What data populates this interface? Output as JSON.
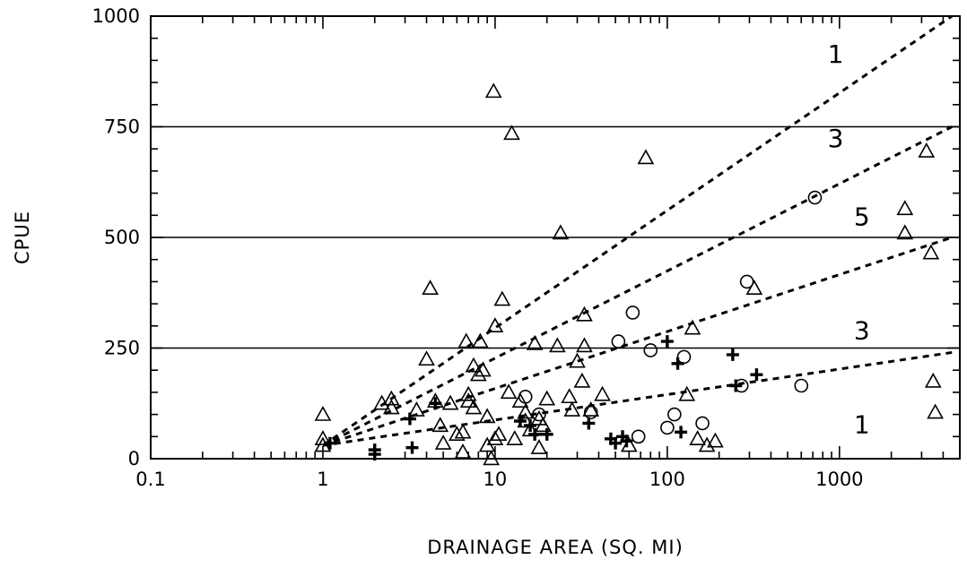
{
  "chart_data": {
    "type": "scatter",
    "title": "",
    "xlabel": "DRAINAGE AREA (SQ. MI)",
    "ylabel": "CPUE",
    "xscale": "log",
    "xlim": [
      0.1,
      5000
    ],
    "ylim": [
      0,
      1000
    ],
    "x_ticks": [
      0.1,
      1,
      10,
      100,
      1000
    ],
    "x_tick_labels": [
      "0.1",
      "1",
      "10",
      "100",
      "1000"
    ],
    "y_ticks": [
      0,
      250,
      500,
      750,
      1000
    ],
    "y_tick_labels": [
      "0",
      "250",
      "500",
      "750",
      "1000"
    ],
    "grid": false,
    "hlines": [
      250,
      500,
      750
    ],
    "ref_lines": [
      {
        "x": [
          1,
          4500
        ],
        "y": [
          30,
          1000
        ]
      },
      {
        "x": [
          1,
          4500
        ],
        "y": [
          30,
          750
        ]
      },
      {
        "x": [
          1,
          4500
        ],
        "y": [
          30,
          500
        ]
      },
      {
        "x": [
          1,
          4500
        ],
        "y": [
          30,
          240
        ]
      }
    ],
    "region_labels": [
      {
        "text": "1",
        "x": 950,
        "y": 915
      },
      {
        "text": "3",
        "x": 950,
        "y": 725
      },
      {
        "text": "5",
        "x": 1350,
        "y": 548
      },
      {
        "text": "3",
        "x": 1350,
        "y": 290
      },
      {
        "text": "1",
        "x": 1350,
        "y": 78
      }
    ],
    "series": [
      {
        "marker": "triangle",
        "points": [
          [
            1,
            100
          ],
          [
            1,
            45
          ],
          [
            1,
            30
          ],
          [
            2.2,
            125
          ],
          [
            2.5,
            135
          ],
          [
            2.5,
            115
          ],
          [
            3.5,
            110
          ],
          [
            4,
            225
          ],
          [
            4.2,
            385
          ],
          [
            4.5,
            130
          ],
          [
            4.8,
            75
          ],
          [
            5,
            35
          ],
          [
            5.5,
            125
          ],
          [
            6,
            55
          ],
          [
            6.5,
            60
          ],
          [
            6.5,
            15
          ],
          [
            6.8,
            265
          ],
          [
            7,
            145
          ],
          [
            7,
            130
          ],
          [
            7.5,
            115
          ],
          [
            7.5,
            210
          ],
          [
            8,
            190
          ],
          [
            8.2,
            265
          ],
          [
            8.5,
            200
          ],
          [
            9,
            30
          ],
          [
            9,
            95
          ],
          [
            9.5,
            0
          ],
          [
            9.8,
            830
          ],
          [
            10,
            45
          ],
          [
            10,
            300
          ],
          [
            10.5,
            55
          ],
          [
            11,
            360
          ],
          [
            12,
            150
          ],
          [
            12.5,
            735
          ],
          [
            13,
            45
          ],
          [
            14,
            130
          ],
          [
            15,
            105
          ],
          [
            15,
            85
          ],
          [
            16,
            65
          ],
          [
            17,
            260
          ],
          [
            18,
            90
          ],
          [
            18,
            25
          ],
          [
            19,
            75
          ],
          [
            20,
            135
          ],
          [
            23,
            255
          ],
          [
            24,
            510
          ],
          [
            27,
            140
          ],
          [
            28,
            110
          ],
          [
            30,
            220
          ],
          [
            32,
            175
          ],
          [
            33,
            325
          ],
          [
            33,
            255
          ],
          [
            36,
            110
          ],
          [
            42,
            145
          ],
          [
            60,
            30
          ],
          [
            75,
            680
          ],
          [
            130,
            145
          ],
          [
            140,
            295
          ],
          [
            150,
            45
          ],
          [
            170,
            30
          ],
          [
            190,
            40
          ],
          [
            320,
            385
          ],
          [
            2400,
            565
          ],
          [
            2400,
            510
          ],
          [
            3200,
            695
          ],
          [
            3400,
            465
          ],
          [
            3500,
            175
          ],
          [
            3600,
            105
          ]
        ]
      },
      {
        "marker": "circle",
        "points": [
          [
            15,
            140
          ],
          [
            18,
            100
          ],
          [
            36,
            105
          ],
          [
            52,
            265
          ],
          [
            63,
            330
          ],
          [
            68,
            50
          ],
          [
            80,
            245
          ],
          [
            100,
            70
          ],
          [
            110,
            100
          ],
          [
            125,
            230
          ],
          [
            160,
            80
          ],
          [
            270,
            165
          ],
          [
            290,
            400
          ],
          [
            600,
            165
          ],
          [
            720,
            590
          ]
        ]
      },
      {
        "marker": "plus",
        "points": [
          [
            1.1,
            35
          ],
          [
            2,
            20
          ],
          [
            2,
            10
          ],
          [
            3.2,
            90
          ],
          [
            3.3,
            25
          ],
          [
            4.5,
            125
          ],
          [
            14,
            85
          ],
          [
            16,
            75
          ],
          [
            17,
            55
          ],
          [
            20,
            55
          ],
          [
            35,
            80
          ],
          [
            47,
            45
          ],
          [
            50,
            35
          ],
          [
            55,
            50
          ],
          [
            58,
            40
          ],
          [
            100,
            265
          ],
          [
            115,
            215
          ],
          [
            120,
            60
          ],
          [
            240,
            235
          ],
          [
            250,
            165
          ],
          [
            330,
            190
          ]
        ]
      }
    ]
  }
}
